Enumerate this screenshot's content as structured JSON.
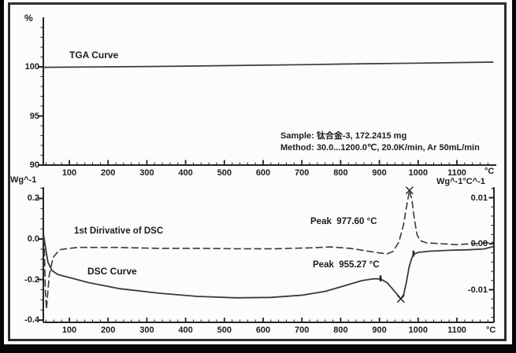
{
  "units": {
    "percent": "%",
    "temp_c": "°C"
  },
  "header": {
    "sample_line": "Sample: 钛合金-3, 172.2415 mg",
    "method_line": "Method: 30.0...1200.0℃, 20.0K/min, Ar 50mL/min"
  },
  "chart_data": [
    {
      "id": "tga_panel",
      "type": "line",
      "title": "TGA Curve",
      "ylabel": "%",
      "xlabel": "°C",
      "xlim": [
        30,
        1200
      ],
      "ylim": [
        90,
        105
      ],
      "yticks": [
        100,
        95,
        90
      ],
      "xticks": [
        100,
        200,
        300,
        400,
        500,
        600,
        700,
        800,
        900,
        1000,
        1100
      ],
      "grid": false,
      "series": [
        {
          "name": "TGA Curve",
          "style": "solid",
          "x": [
            35,
            100,
            200,
            300,
            400,
            500,
            600,
            700,
            800,
            900,
            1000,
            1100,
            1193
          ],
          "y": [
            99.95,
            99.97,
            100.0,
            100.03,
            100.07,
            100.12,
            100.17,
            100.22,
            100.28,
            100.33,
            100.38,
            100.43,
            100.48
          ]
        }
      ]
    },
    {
      "id": "dsc_panel",
      "type": "line",
      "ylabel_left": "Wg^-1",
      "ylabel_right": "Wg^-1°C^-1",
      "xlabel": "°C",
      "xlim": [
        30,
        1200
      ],
      "ylim_left": [
        -0.42,
        0.26
      ],
      "ylim_right": [
        -0.017,
        0.0125
      ],
      "yticks_left": [
        "0.2",
        "0.0",
        "-0.2",
        "-0.4"
      ],
      "yticks_right": [
        "0.01",
        "0.00",
        "-0.01"
      ],
      "xticks": [
        100,
        200,
        300,
        400,
        500,
        600,
        700,
        800,
        900,
        1000,
        1100
      ],
      "grid": false,
      "series": [
        {
          "name": "DSC Curve",
          "axis": "left",
          "style": "solid",
          "x": [
            34,
            40,
            45,
            55,
            70,
            100,
            150,
            230,
            330,
            430,
            530,
            620,
            700,
            760,
            815,
            855,
            885,
            903,
            920,
            937,
            948,
            955.27,
            963,
            970,
            977,
            983,
            988,
            1000,
            1030,
            1080,
            1130,
            1170,
            1193
          ],
          "y": [
            0.015,
            -0.06,
            -0.115,
            -0.155,
            -0.175,
            -0.19,
            -0.215,
            -0.245,
            -0.267,
            -0.283,
            -0.29,
            -0.288,
            -0.277,
            -0.258,
            -0.228,
            -0.205,
            -0.196,
            -0.197,
            -0.215,
            -0.253,
            -0.278,
            -0.295,
            -0.272,
            -0.21,
            -0.135,
            -0.098,
            -0.075,
            -0.066,
            -0.06,
            -0.056,
            -0.053,
            -0.049,
            -0.038
          ],
          "range_markers": [
            {
              "t": 903,
              "v": -0.197
            },
            {
              "t": 988,
              "v": -0.075
            }
          ]
        },
        {
          "name": "1st Dirivative of DSC",
          "axis": "right",
          "style": "dashed",
          "x": [
            35,
            38,
            41,
            48,
            58,
            75,
            120,
            220,
            330,
            430,
            530,
            630,
            720,
            775,
            825,
            870,
            900,
            920,
            935,
            950,
            962,
            970,
            977.6,
            984,
            990,
            997,
            1005,
            1020,
            1060,
            1100,
            1140,
            1175,
            1193
          ],
          "y": [
            0.001,
            -0.01,
            -0.0142,
            -0.007,
            -0.003,
            -0.0013,
            -0.0008,
            -0.0008,
            -0.001,
            -0.001,
            -0.0011,
            -0.0011,
            -0.0009,
            -0.0007,
            -0.001,
            -0.0016,
            -0.002,
            -0.0022,
            -0.0017,
            0.0003,
            0.004,
            0.008,
            0.0116,
            0.0095,
            0.0055,
            0.002,
            0.0007,
            0.0002,
            0.0,
            -0.0002,
            0.0,
            0.0002,
            0.0003
          ]
        }
      ],
      "annotations": [
        {
          "label": "Peak  977.60 °C",
          "t": 977.6,
          "v": 0.0116,
          "axis": "right",
          "marker": "x"
        },
        {
          "label": "Peak  955.27 °C",
          "t": 955.27,
          "v": -0.295,
          "axis": "left",
          "marker": "x"
        }
      ]
    }
  ]
}
